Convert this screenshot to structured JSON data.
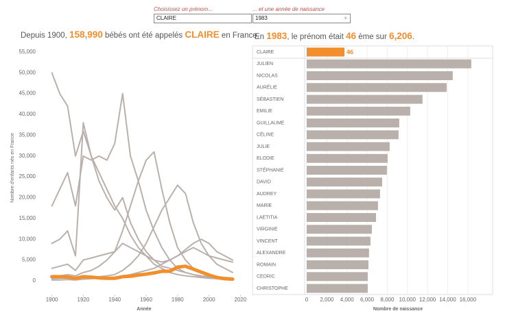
{
  "controls": {
    "name_label": "Choisissez un prénom...",
    "name_value": "CLAIRE",
    "year_label": "... et une année de naissance",
    "year_value": "1983"
  },
  "headline_left": {
    "prefix": "Depuis 1900,",
    "total": "158,990",
    "middle": "bébés ont été appelés",
    "name": "CLAIRE",
    "suffix": "en France."
  },
  "headline_right": {
    "prefix": "En",
    "year": "1983",
    "middle": ", le prénom était",
    "rank": "46",
    "middle2": "ème sur",
    "count": "6,206",
    "suffix": "."
  },
  "chart_data": [
    {
      "type": "line",
      "y_label": "Nombre d'enfants nés en France",
      "x_label": "Année",
      "x": [
        1900,
        1905,
        1910,
        1915,
        1920,
        1925,
        1930,
        1935,
        1940,
        1945,
        1950,
        1955,
        1960,
        1965,
        1970,
        1975,
        1980,
        1985,
        1990,
        1995,
        2000,
        2005,
        2010,
        2015
      ],
      "xlim": [
        1891,
        2022
      ],
      "ylim": [
        -3300,
        56300
      ],
      "xticks": [
        1900,
        1920,
        1940,
        1960,
        1980,
        2000,
        2020
      ],
      "yticks": [
        0,
        {
          "value": 5000,
          "label": "5,000"
        },
        {
          "value": 10000,
          "label": "10,000"
        },
        {
          "value": 15000,
          "label": "15,000"
        },
        {
          "value": 20000,
          "label": "20,000"
        },
        {
          "value": 25000,
          "label": "25,000"
        },
        {
          "value": 30000,
          "label": "30,000"
        },
        {
          "value": 35000,
          "label": "35,000"
        },
        {
          "value": 40000,
          "label": "40,000"
        },
        {
          "value": 45000,
          "label": "45,000"
        },
        {
          "value": 50000,
          "label": "50,000"
        },
        {
          "value": 55000,
          "label": "55,000"
        }
      ],
      "series": [
        {
          "color": "#bab0ab",
          "width": 2,
          "values": [
            50000,
            45000,
            42000,
            30000,
            36000,
            30000,
            24000,
            20000,
            17000,
            20000,
            14000,
            10000,
            7000,
            5000,
            3500,
            3000,
            2500,
            2000,
            1500,
            1200,
            1000,
            900,
            800,
            700
          ]
        },
        {
          "color": "#bab0ab",
          "width": 2,
          "values": [
            18000,
            22000,
            26000,
            18000,
            30000,
            29000,
            30000,
            29000,
            33000,
            45000,
            30000,
            24000,
            17000,
            12000,
            8000,
            5000,
            3000,
            2000,
            1500,
            1000,
            800,
            600,
            500,
            400
          ]
        },
        {
          "color": "#bab0ab",
          "width": 2,
          "values": [
            9000,
            10000,
            12000,
            6000,
            38000,
            30000,
            26000,
            22000,
            18000,
            15000,
            11000,
            8000,
            6000,
            4000,
            3000,
            2000,
            1500,
            1200,
            1000,
            800,
            600,
            500,
            400,
            300
          ]
        },
        {
          "color": "#bab0ab",
          "width": 2,
          "values": [
            1000,
            1200,
            1500,
            1200,
            2000,
            2500,
            3500,
            5000,
            7000,
            12000,
            18000,
            24000,
            29000,
            31000,
            22000,
            14000,
            8000,
            5000,
            3000,
            2000,
            1500,
            1000,
            800,
            600
          ]
        },
        {
          "color": "#bab0ab",
          "width": 2,
          "values": [
            500,
            600,
            700,
            500,
            800,
            900,
            1000,
            1200,
            1500,
            2500,
            4000,
            6000,
            9000,
            13000,
            17000,
            20000,
            23000,
            21000,
            14000,
            9000,
            6000,
            4000,
            3000,
            2000
          ]
        },
        {
          "color": "#bab0ab",
          "width": 2,
          "values": [
            3000,
            3500,
            4000,
            2500,
            5000,
            5500,
            6000,
            6500,
            7000,
            9000,
            8000,
            7000,
            6000,
            5000,
            4500,
            5000,
            6000,
            7500,
            9000,
            10000,
            9000,
            7000,
            6000,
            5000
          ]
        },
        {
          "color": "#bab0ab",
          "width": 2,
          "values": [
            200,
            200,
            300,
            200,
            400,
            500,
            600,
            700,
            900,
            1200,
            1500,
            2000,
            2500,
            3000,
            4000,
            5000,
            6000,
            7000,
            8000,
            7000,
            6000,
            5500,
            5000,
            4500
          ]
        },
        {
          "color": "#f28e2b",
          "width": 5,
          "values": [
            1000,
            1000,
            900,
            600,
            1000,
            900,
            700,
            600,
            600,
            1000,
            1100,
            1400,
            1600,
            1900,
            2300,
            2300,
            3300,
            3500,
            2800,
            2100,
            1400,
            800,
            500,
            400
          ]
        }
      ]
    },
    {
      "type": "hbar",
      "x_label": "Nombre de naissance",
      "categories": [
        "CLAIRE",
        "JULIEN",
        "NICOLAS",
        "AURÉLIE",
        "SÉBASTIEN",
        "EMILIE",
        "GUILLAUME",
        "CÉLINE",
        "JULIE",
        "ELODIE",
        "STÉPHANIE",
        "DAVID",
        "AUDREY",
        "MARIE",
        "LAETITIA",
        "VIRGINIE",
        "VINCENT",
        "ALEXANDRE",
        "ROMAIN",
        "CEDRIC",
        "CHRISTOPHE"
      ],
      "values": [
        3750,
        16340,
        14500,
        13900,
        11500,
        10280,
        9190,
        9120,
        8240,
        8030,
        7960,
        7490,
        7280,
        7080,
        6880,
        6470,
        6330,
        6190,
        6130,
        6060,
        6060
      ],
      "colors": [
        "#f28e2b",
        "#bab0ab",
        "#bab0ab",
        "#bab0ab",
        "#bab0ab",
        "#bab0ab",
        "#bab0ab",
        "#bab0ab",
        "#bab0ab",
        "#bab0ab",
        "#bab0ab",
        "#bab0ab",
        "#bab0ab",
        "#bab0ab",
        "#bab0ab",
        "#bab0ab",
        "#bab0ab",
        "#bab0ab",
        "#bab0ab",
        "#bab0ab",
        "#bab0ab"
      ],
      "xlim": [
        0,
        18600
      ],
      "xticks": [
        0,
        {
          "value": 2000,
          "label": "2,000"
        },
        {
          "value": 4000,
          "label": "4,000"
        },
        {
          "value": 6000,
          "label": "6,000"
        },
        {
          "value": 8000,
          "label": "8,000"
        },
        {
          "value": 10000,
          "label": "10,000"
        },
        {
          "value": 12000,
          "label": "12,000"
        },
        {
          "value": 14000,
          "label": "14,000"
        },
        {
          "value": 16000,
          "label": "16,000"
        }
      ]
    }
  ]
}
